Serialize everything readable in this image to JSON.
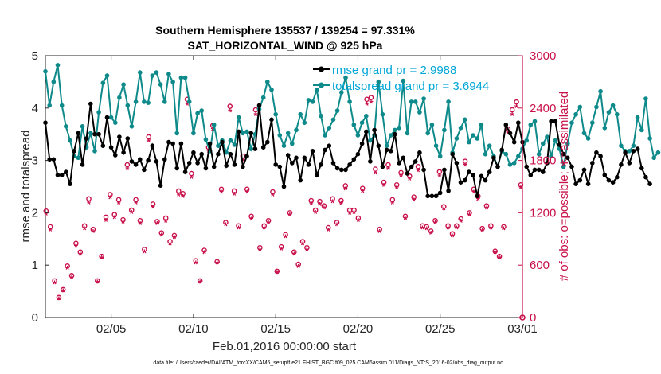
{
  "chart_data": {
    "type": "line",
    "title_line1": "Southern Hemisphere 135537 / 139254 = 97.331%",
    "title_line2": "SAT_HORIZONTAL_WIND @ 925 hPa",
    "xlabel": "Feb.01,2016 00:00:00 start",
    "ylabel_left": "rmse and totalspread",
    "ylabel_right": "# of obs: o=possible; ∗=assimilated",
    "footer": "data file: /Users/raeder/DAI/ATM_forcXX/CAM6_setup/f.e21.FHIST_BGC.f09_025.CAM6assim.011/Diags_NTrS_2016-02/obs_diag_output.nc",
    "xlim": [
      1,
      30
    ],
    "ylim_left": [
      0,
      5
    ],
    "ylim_right": [
      0,
      3000
    ],
    "x_ticks": [
      5,
      10,
      15,
      20,
      25,
      30
    ],
    "x_tick_labels": [
      "02/05",
      "02/10",
      "02/15",
      "02/20",
      "02/25",
      "03/01"
    ],
    "y_ticks_left": [
      "0",
      "1",
      "2",
      "3",
      "4",
      "5"
    ],
    "y_ticks_right": [
      "0",
      "600",
      "1200",
      "1800",
      "2400",
      "3000"
    ],
    "series": [
      {
        "name": "rmse",
        "legend": "rmse grand pr = 2.9988",
        "color": "#000000",
        "axis": "left",
        "x_start": 1,
        "x_step": 0.25,
        "values": [
          3.72,
          3.02,
          3.02,
          2.72,
          2.72,
          2.78,
          2.55,
          3.18,
          3.52,
          2.92,
          3.42,
          4.08,
          3.5,
          3.5,
          3.28,
          3.82,
          3.25,
          3.1,
          3.45,
          3.15,
          3.42,
          2.98,
          2.92,
          3.02,
          2.82,
          3.0,
          3.28,
          2.98,
          2.52,
          3.02,
          3.35,
          3.32,
          2.85,
          3.32,
          2.78,
          2.95,
          3.15,
          2.95,
          3.12,
          2.85,
          3.32,
          2.88,
          3.12,
          3.35,
          2.9,
          3.12,
          2.92,
          3.55,
          2.88,
          3.08,
          3.52,
          3.22,
          4.05,
          3.25,
          3.35,
          3.78,
          2.92,
          2.88,
          2.5,
          3.1,
          2.95,
          3.05,
          2.62,
          3.05,
          2.92,
          3.18,
          2.72,
          2.92,
          3.2,
          3.28,
          2.95,
          2.85,
          2.82,
          2.82,
          2.92,
          3.02,
          3.12,
          3.32,
          3.55,
          2.98,
          3.58,
          3.28,
          2.88,
          3.2,
          3.18,
          3.5,
          2.95,
          3.05,
          2.75,
          2.88,
          2.98,
          3.15,
          2.82,
          2.32,
          2.32,
          2.32,
          2.38,
          2.82,
          2.42,
          3.12,
          2.95,
          2.58,
          2.62,
          2.78,
          2.72,
          2.32,
          2.7,
          2.62,
          2.78,
          3.05,
          2.88,
          3.2,
          3.68,
          3.52,
          3.35,
          3.72,
          3.35,
          2.88,
          2.72,
          2.82,
          2.82,
          2.78,
          2.95,
          3.75,
          3.75,
          3.3,
          3.12,
          3.05,
          2.88,
          2.55,
          2.62,
          2.82,
          2.55,
          2.95,
          3.15,
          3.08,
          2.72,
          2.62,
          2.58,
          2.68,
          2.92,
          3.15,
          2.95,
          3.18,
          3.22,
          2.85,
          2.68,
          2.55
        ]
      },
      {
        "name": "totalspread",
        "legend": "totalspread grand pr = 3.6944",
        "color": "#0e8a8a",
        "axis": "left",
        "x_start": 1,
        "x_step": 0.25,
        "values": [
          4.7,
          4.05,
          4.5,
          4.82,
          4.05,
          3.65,
          3.38,
          3.08,
          3.05,
          3.65,
          3.25,
          3.52,
          3.18,
          3.92,
          4.48,
          4.62,
          3.82,
          3.72,
          4.2,
          4.45,
          4.05,
          3.65,
          4.12,
          4.68,
          4.12,
          4.1,
          4.62,
          4.68,
          4.45,
          4.12,
          4.65,
          4.5,
          3.52,
          4.58,
          4.58,
          4.12,
          3.52,
          3.9,
          3.95,
          3.4,
          3.18,
          3.68,
          3.28,
          3.38,
          3.15,
          3.38,
          3.3,
          3.82,
          3.52,
          3.55,
          3.22,
          3.5,
          3.98,
          4.2,
          4.5,
          4.35,
          3.88,
          3.48,
          3.28,
          3.52,
          3.32,
          3.58,
          3.88,
          3.72,
          4.15,
          4.12,
          4.35,
          3.85,
          3.48,
          3.62,
          3.78,
          3.95,
          4.3,
          4.58,
          4.12,
          3.68,
          3.48,
          3.72,
          3.85,
          3.38,
          3.48,
          4.5,
          3.88,
          3.28,
          3.48,
          3.58,
          3.62,
          4.52,
          3.52,
          4.12,
          4.12,
          3.92,
          4.18,
          3.52,
          3.68,
          3.28,
          3.08,
          3.58,
          4.12,
          3.15,
          3.42,
          3.62,
          3.78,
          3.35,
          3.48,
          3.42,
          3.68,
          3.12,
          3.28,
          3.08,
          2.88,
          3.18,
          3.12,
          2.92,
          2.95,
          3.08,
          3.22,
          3.38,
          3.68,
          3.75,
          3.12,
          3.32,
          3.45,
          3.08,
          3.38,
          3.22,
          2.88,
          3.32,
          3.72,
          3.88,
          4.02,
          3.52,
          3.42,
          3.72,
          4.02,
          4.32,
          3.62,
          3.92,
          4.05,
          3.88,
          3.28,
          3.18,
          3.18,
          3.28,
          3.82,
          3.58,
          4.18,
          3.42,
          3.05,
          3.15
        ]
      },
      {
        "name": "obs possible",
        "legend": "possible (o)",
        "color": "#c8104a",
        "axis": "right",
        "x_start": 1,
        "x_step": 0.25,
        "values": [
          1220,
          1040,
          420,
          230,
          320,
          590,
          480,
          850,
          750,
          1050,
          1360,
          1010,
          420,
          700,
          1150,
          1410,
          1180,
          1350,
          1120,
          1750,
          1230,
          1350,
          1110,
          780,
          2070,
          1300,
          1100,
          970,
          1140,
          870,
          940,
          1450,
          1420,
          2500,
          1650,
          650,
          420,
          770,
          1950,
          2200,
          640,
          1470,
          1090,
          2420,
          1450,
          1050,
          1850,
          1470,
          1160,
          2380,
          800,
          1050,
          1110,
          1440,
          530,
          810,
          950,
          1200,
          750,
          610,
          870,
          800,
          1340,
          1230,
          1330,
          1280,
          1030,
          1360,
          1090,
          1340,
          1510,
          1230,
          1230,
          1140,
          1480,
          2500,
          2520,
          1700,
          1010,
          1550,
          1750,
          1350,
          1520,
          1660,
          1160,
          1620,
          1380,
          1730,
          1050,
          1040,
          990,
          1110,
          1670,
          1270,
          1050,
          960,
          1050,
          1130,
          1790,
          1200,
          1470,
          1390,
          1020,
          1280,
          1050,
          760,
          700,
          1040,
          2160,
          2380,
          2470,
          1520
        ]
      },
      {
        "name": "obs assimilated",
        "legend": "assimilated (∗)",
        "color": "#c8104a",
        "axis": "right",
        "x_start": 1,
        "x_step": 0.25,
        "values": [
          1180,
          1000,
          390,
          210,
          300,
          560,
          450,
          810,
          720,
          1010,
          1310,
          980,
          400,
          680,
          1110,
          1370,
          1140,
          1310,
          1090,
          1700,
          1200,
          1310,
          1070,
          750,
          2020,
          1260,
          1070,
          940,
          1100,
          840,
          910,
          1400,
          1380,
          2440,
          1600,
          620,
          400,
          740,
          1900,
          2150,
          620,
          1430,
          1060,
          2360,
          1410,
          1020,
          1800,
          1430,
          1120,
          2320,
          770,
          1020,
          1080,
          1400,
          510,
          780,
          920,
          1170,
          720,
          580,
          840,
          770,
          1300,
          1200,
          1290,
          1250,
          1000,
          1320,
          1060,
          1300,
          1470,
          1190,
          1200,
          1110,
          1440,
          2440,
          2460,
          1650,
          980,
          1510,
          1700,
          1310,
          1480,
          1620,
          1130,
          1580,
          1340,
          1680,
          1020,
          1010,
          960,
          1080,
          1620,
          1240,
          1020,
          930,
          1020,
          1100,
          1740,
          1170,
          1430,
          1350,
          990,
          1250,
          1020,
          740,
          680,
          1010,
          2110,
          2320,
          2410,
          1480
        ]
      }
    ],
    "obs_x_start": 1.04,
    "obs_x_step": 0.26,
    "final_possible": 0,
    "final_possible_x": 30
  }
}
